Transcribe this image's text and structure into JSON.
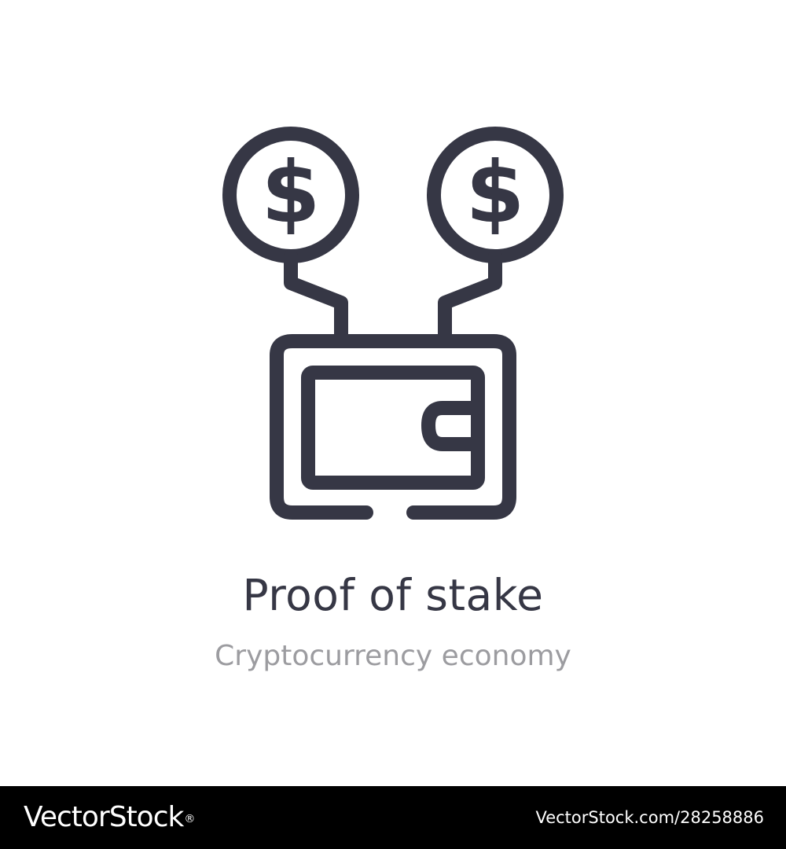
{
  "icon": {
    "name": "proof-of-stake-wallet-icon",
    "stroke_color": "#363745"
  },
  "caption": {
    "title": "Proof of stake",
    "subtitle": "Cryptocurrency economy"
  },
  "footer": {
    "logo_text": "VectorStock",
    "logo_mark": "®",
    "image_id": "VectorStock.com/28258886",
    "background": "#000000"
  },
  "colors": {
    "title": "#363745",
    "subtitle": "#9c9ca0",
    "background": "#ffffff"
  }
}
